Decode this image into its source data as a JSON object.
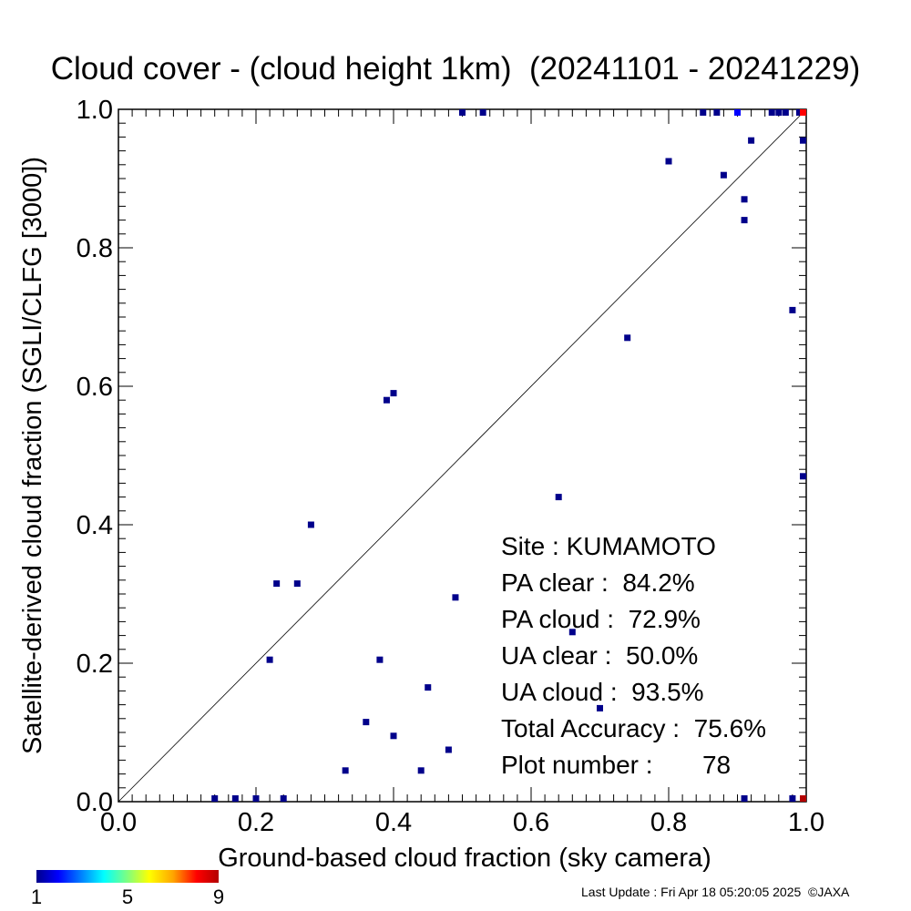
{
  "title": "Cloud cover - (cloud height 1km)  (20241101 - 20241229)",
  "footer": "Last Update : Fri Apr 18 05:20:05 2025  ©JAXA",
  "stats": {
    "site": "Site : KUMAMOTO",
    "pa_clear": "PA clear :  84.2%",
    "pa_cloud": "PA cloud :  72.9%",
    "ua_clear": "UA clear :  50.0%",
    "ua_cloud": "UA cloud :  93.5%",
    "total_accuracy": "Total Accuracy :  75.6%",
    "plot_number": "Plot number :       78"
  },
  "colorbar": {
    "min_label": "1",
    "mid_label": "5",
    "max_label": "9",
    "colors": [
      "#00008b",
      "#0000ff",
      "#00bfff",
      "#00ffff",
      "#7fff7f",
      "#ffff00",
      "#ffa500",
      "#ff0000",
      "#b30000"
    ]
  },
  "chart_data": {
    "type": "scatter",
    "title": "Cloud cover - (cloud height 1km)  (20241101 - 20241229)",
    "xlabel": "Ground-based cloud fraction (sky camera)",
    "ylabel": "Satellite-derived cloud fraction (SGLI/CLFG [3000])",
    "xlim": [
      0,
      1
    ],
    "ylim": [
      0,
      1
    ],
    "xticks": [
      "0.0",
      "0.2",
      "0.4",
      "0.6",
      "0.8",
      "1.0"
    ],
    "yticks": [
      "0.0",
      "0.2",
      "0.4",
      "0.6",
      "0.8",
      "1.0"
    ],
    "diagonal_line": true,
    "grid": false,
    "color_scale": "count 1-9 (blue to red)",
    "points": [
      {
        "x": 0.14,
        "y": 0.0,
        "count": 1
      },
      {
        "x": 0.17,
        "y": 0.0,
        "count": 1
      },
      {
        "x": 0.2,
        "y": 0.0,
        "count": 1
      },
      {
        "x": 0.24,
        "y": 0.0,
        "count": 1
      },
      {
        "x": 0.91,
        "y": 0.0,
        "count": 1
      },
      {
        "x": 0.98,
        "y": 0.0,
        "count": 1
      },
      {
        "x": 1.0,
        "y": 0.0,
        "count": 9
      },
      {
        "x": 0.33,
        "y": 0.045,
        "count": 1
      },
      {
        "x": 0.44,
        "y": 0.045,
        "count": 1
      },
      {
        "x": 0.48,
        "y": 0.075,
        "count": 1
      },
      {
        "x": 0.4,
        "y": 0.095,
        "count": 1
      },
      {
        "x": 0.36,
        "y": 0.115,
        "count": 1
      },
      {
        "x": 0.7,
        "y": 0.135,
        "count": 1
      },
      {
        "x": 0.45,
        "y": 0.165,
        "count": 1
      },
      {
        "x": 0.22,
        "y": 0.205,
        "count": 1
      },
      {
        "x": 0.38,
        "y": 0.205,
        "count": 1
      },
      {
        "x": 0.66,
        "y": 0.245,
        "count": 1
      },
      {
        "x": 0.49,
        "y": 0.295,
        "count": 1
      },
      {
        "x": 0.23,
        "y": 0.315,
        "count": 1
      },
      {
        "x": 0.26,
        "y": 0.315,
        "count": 1
      },
      {
        "x": 0.28,
        "y": 0.4,
        "count": 1
      },
      {
        "x": 0.64,
        "y": 0.44,
        "count": 1
      },
      {
        "x": 1.0,
        "y": 0.47,
        "count": 1
      },
      {
        "x": 0.39,
        "y": 0.58,
        "count": 1
      },
      {
        "x": 0.4,
        "y": 0.59,
        "count": 1
      },
      {
        "x": 0.74,
        "y": 0.67,
        "count": 1
      },
      {
        "x": 0.98,
        "y": 0.71,
        "count": 1
      },
      {
        "x": 0.91,
        "y": 0.84,
        "count": 1
      },
      {
        "x": 0.91,
        "y": 0.87,
        "count": 1
      },
      {
        "x": 0.88,
        "y": 0.905,
        "count": 1
      },
      {
        "x": 0.8,
        "y": 0.925,
        "count": 1
      },
      {
        "x": 0.92,
        "y": 0.955,
        "count": 1
      },
      {
        "x": 1.0,
        "y": 0.955,
        "count": 1
      },
      {
        "x": 0.5,
        "y": 1.0,
        "count": 1
      },
      {
        "x": 0.53,
        "y": 1.0,
        "count": 1
      },
      {
        "x": 0.85,
        "y": 1.0,
        "count": 1
      },
      {
        "x": 0.87,
        "y": 1.0,
        "count": 1
      },
      {
        "x": 0.9,
        "y": 1.0,
        "count": 2
      },
      {
        "x": 0.95,
        "y": 1.0,
        "count": 1
      },
      {
        "x": 0.96,
        "y": 1.0,
        "count": 1
      },
      {
        "x": 0.97,
        "y": 1.0,
        "count": 1
      },
      {
        "x": 0.99,
        "y": 1.0,
        "count": 1
      },
      {
        "x": 1.0,
        "y": 1.0,
        "count": 8
      }
    ]
  }
}
